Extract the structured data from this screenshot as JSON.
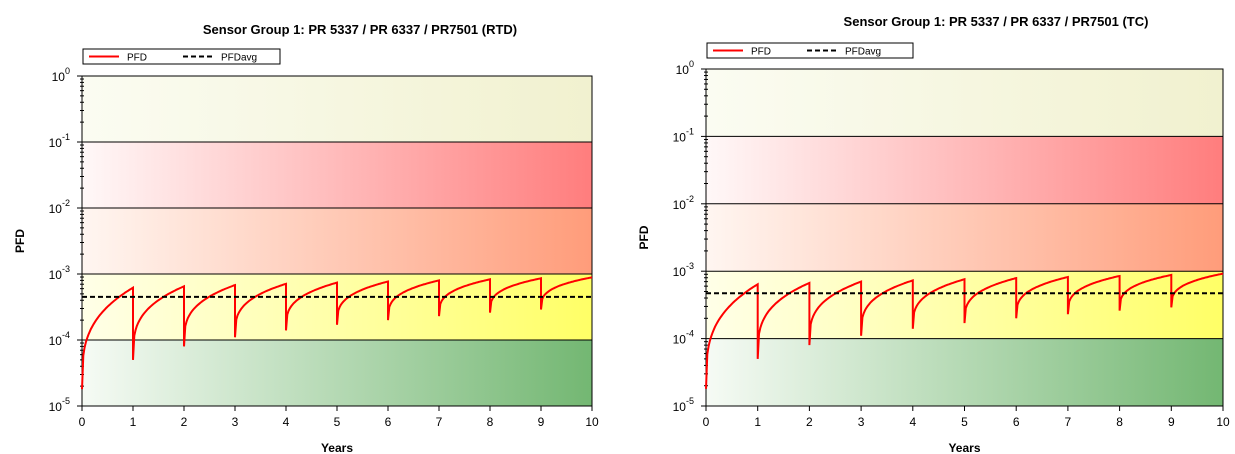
{
  "chart_data": [
    {
      "type": "line",
      "title": "Sensor Group 1: PR 5337 / PR 6337 / PR7501 (RTD)",
      "xlabel": "Years",
      "ylabel": "PFD",
      "xlim": [
        0,
        10
      ],
      "ylim": [
        1e-05,
        1
      ],
      "yscale": "log",
      "grid": false,
      "legend_position": "top-left",
      "x_ticks": [
        "0",
        "1",
        "2",
        "3",
        "4",
        "5",
        "6",
        "7",
        "8",
        "9",
        "10"
      ],
      "y_ticks": [
        {
          "base": "10",
          "exp": "0",
          "value": 1
        },
        {
          "base": "10",
          "exp": "-1",
          "value": 0.1
        },
        {
          "base": "10",
          "exp": "-2",
          "value": 0.01
        },
        {
          "base": "10",
          "exp": "-3",
          "value": 0.001
        },
        {
          "base": "10",
          "exp": "-4",
          "value": 0.0001
        },
        {
          "base": "10",
          "exp": "-5",
          "value": 1e-05
        }
      ],
      "series": [
        {
          "name": "PFD",
          "style": "solid",
          "color": "#ff0000",
          "x": [
            0,
            1,
            1,
            2,
            2,
            3,
            3,
            4,
            4,
            5,
            5,
            6,
            6,
            7,
            7,
            8,
            8,
            9,
            9,
            10
          ],
          "y": [
            1.8e-05,
            0.00062,
            5e-05,
            0.00065,
            8e-05,
            0.00068,
            0.00011,
            0.00071,
            0.00014,
            0.00074,
            0.00017,
            0.00077,
            0.0002,
            0.0008,
            0.00023,
            0.00083,
            0.00026,
            0.00086,
            0.00029,
            0.00089
          ]
        },
        {
          "name": "PFDavg",
          "style": "dashed",
          "color": "#000000",
          "x": [
            0,
            10
          ],
          "y": [
            0.00045,
            0.00045
          ]
        }
      ],
      "bands": [
        {
          "from": 0.1,
          "to": 1,
          "color_left": "#fbfcf2",
          "color_right": "#f1f1cf"
        },
        {
          "from": 0.01,
          "to": 0.1,
          "color_left": "#fff8f8",
          "color_right": "#ff7d7d"
        },
        {
          "from": 0.001,
          "to": 0.01,
          "color_left": "#fff6f1",
          "color_right": "#ff9c7a"
        },
        {
          "from": 0.0001,
          "to": 0.001,
          "color_left": "#ffffe8",
          "color_right": "#ffff66"
        },
        {
          "from": 1e-05,
          "to": 0.0001,
          "color_left": "#f6fbf5",
          "color_right": "#73b772"
        }
      ]
    },
    {
      "type": "line",
      "title": "Sensor Group 1: PR 5337 / PR 6337 / PR7501 (TC)",
      "xlabel": "Years",
      "ylabel": "PFD",
      "xlim": [
        0,
        10
      ],
      "ylim": [
        1e-05,
        1
      ],
      "yscale": "log",
      "grid": false,
      "legend_position": "top-left",
      "x_ticks": [
        "0",
        "1",
        "2",
        "3",
        "4",
        "5",
        "6",
        "7",
        "8",
        "9",
        "10"
      ],
      "y_ticks": [
        {
          "base": "10",
          "exp": "0",
          "value": 1
        },
        {
          "base": "10",
          "exp": "-1",
          "value": 0.1
        },
        {
          "base": "10",
          "exp": "-2",
          "value": 0.01
        },
        {
          "base": "10",
          "exp": "-3",
          "value": 0.001
        },
        {
          "base": "10",
          "exp": "-4",
          "value": 0.0001
        },
        {
          "base": "10",
          "exp": "-5",
          "value": 1e-05
        }
      ],
      "series": [
        {
          "name": "PFD",
          "style": "solid",
          "color": "#ff0000",
          "x": [
            0,
            1,
            1,
            2,
            2,
            3,
            3,
            4,
            4,
            5,
            5,
            6,
            6,
            7,
            7,
            8,
            8,
            9,
            9,
            10
          ],
          "y": [
            1.8e-05,
            0.00064,
            5e-05,
            0.00067,
            8e-05,
            0.0007,
            0.00011,
            0.00073,
            0.00014,
            0.00076,
            0.00017,
            0.00079,
            0.0002,
            0.00082,
            0.00023,
            0.00085,
            0.00026,
            0.00088,
            0.00029,
            0.00092
          ]
        },
        {
          "name": "PFDavg",
          "style": "dashed",
          "color": "#000000",
          "x": [
            0,
            10
          ],
          "y": [
            0.00047,
            0.00047
          ]
        }
      ],
      "bands": [
        {
          "from": 0.1,
          "to": 1,
          "color_left": "#fbfcf2",
          "color_right": "#f1f1cf"
        },
        {
          "from": 0.01,
          "to": 0.1,
          "color_left": "#fff8f8",
          "color_right": "#ff7d7d"
        },
        {
          "from": 0.001,
          "to": 0.01,
          "color_left": "#fff6f1",
          "color_right": "#ff9c7a"
        },
        {
          "from": 0.0001,
          "to": 0.001,
          "color_left": "#ffffe8",
          "color_right": "#ffff66"
        },
        {
          "from": 1e-05,
          "to": 0.0001,
          "color_left": "#f6fbf5",
          "color_right": "#73b772"
        }
      ]
    }
  ]
}
